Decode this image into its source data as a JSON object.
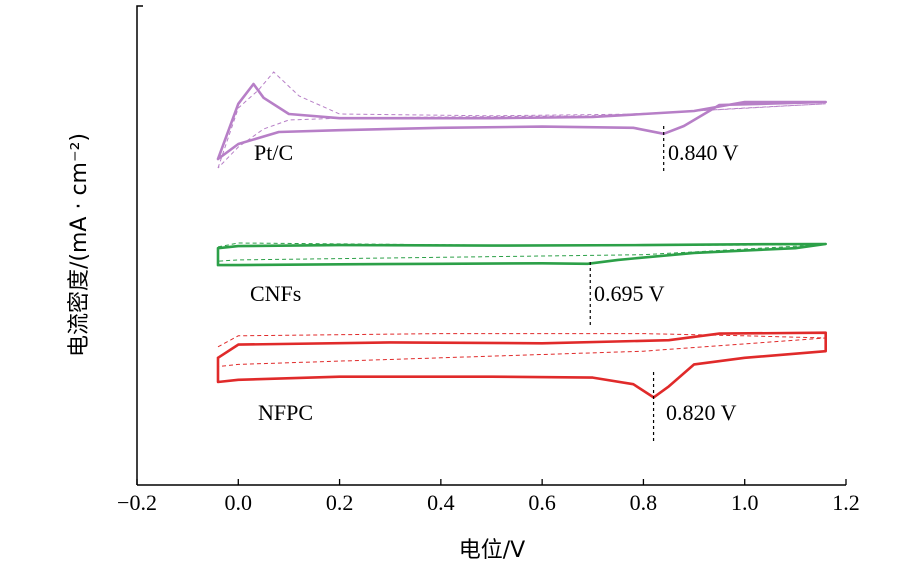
{
  "chart_data": {
    "type": "line",
    "title": "",
    "xlabel": "电位/V",
    "ylabel": "电流密度/(mA · cm⁻²)",
    "xlim": [
      -0.2,
      1.2
    ],
    "x_ticks": [
      -0.2,
      0.0,
      0.2,
      0.4,
      0.6,
      0.8,
      1.0,
      1.2
    ],
    "x_tick_labels": [
      "−0.2",
      "0.0",
      "0.2",
      "0.4",
      "0.6",
      "0.8",
      "1.0",
      "1.2"
    ],
    "y_ticks_shown": false,
    "grid": false,
    "curves": [
      {
        "label": "Pt/C",
        "color": "#b77fc7",
        "peak_potential": 0.84,
        "peak_label": "0.840 V",
        "solid_upper": [
          [
            -0.04,
            -0.9
          ],
          [
            0.0,
            0.02
          ],
          [
            0.03,
            0.35
          ],
          [
            0.05,
            0.12
          ],
          [
            0.1,
            -0.15
          ],
          [
            0.2,
            -0.22
          ],
          [
            0.5,
            -0.22
          ],
          [
            0.7,
            -0.2
          ],
          [
            0.9,
            -0.1
          ],
          [
            1.0,
            0.05
          ],
          [
            1.16,
            0.05
          ]
        ],
        "solid_lower": [
          [
            1.16,
            0.05
          ],
          [
            0.95,
            0.0
          ],
          [
            0.88,
            -0.35
          ],
          [
            0.84,
            -0.48
          ],
          [
            0.78,
            -0.38
          ],
          [
            0.6,
            -0.36
          ],
          [
            0.4,
            -0.38
          ],
          [
            0.2,
            -0.42
          ],
          [
            0.08,
            -0.45
          ],
          [
            0.0,
            -0.65
          ],
          [
            -0.04,
            -0.9
          ]
        ],
        "dash_upper": [
          [
            -0.04,
            -1.05
          ],
          [
            0.0,
            -0.05
          ],
          [
            0.04,
            0.25
          ],
          [
            0.07,
            0.55
          ],
          [
            0.12,
            0.15
          ],
          [
            0.2,
            -0.15
          ],
          [
            0.5,
            -0.18
          ],
          [
            0.8,
            -0.15
          ],
          [
            1.0,
            -0.05
          ],
          [
            1.16,
            0.02
          ]
        ],
        "dash_lower": [
          [
            1.16,
            0.02
          ],
          [
            0.9,
            -0.1
          ],
          [
            0.7,
            -0.18
          ],
          [
            0.4,
            -0.2
          ],
          [
            0.2,
            -0.22
          ],
          [
            0.1,
            -0.25
          ],
          [
            0.05,
            -0.4
          ],
          [
            0.0,
            -0.7
          ],
          [
            -0.04,
            -1.05
          ]
        ]
      },
      {
        "label": "CNFs",
        "color": "#2ca048",
        "peak_potential": 0.695,
        "peak_label": "0.695 V",
        "solid_upper": [
          [
            -0.04,
            0.3
          ],
          [
            0.0,
            0.38
          ],
          [
            0.2,
            0.42
          ],
          [
            0.5,
            0.4
          ],
          [
            0.8,
            0.42
          ],
          [
            1.0,
            0.45
          ],
          [
            1.16,
            0.46
          ]
        ],
        "solid_lower": [
          [
            1.16,
            0.46
          ],
          [
            1.1,
            0.3
          ],
          [
            0.9,
            0.12
          ],
          [
            0.75,
            -0.15
          ],
          [
            0.69,
            -0.3
          ],
          [
            0.6,
            -0.28
          ],
          [
            0.4,
            -0.3
          ],
          [
            0.2,
            -0.32
          ],
          [
            0.0,
            -0.35
          ],
          [
            -0.04,
            -0.35
          ],
          [
            -0.04,
            0.3
          ]
        ],
        "dash_upper": [
          [
            -0.04,
            0.35
          ],
          [
            0.0,
            0.5
          ],
          [
            0.3,
            0.45
          ],
          [
            0.6,
            0.4
          ],
          [
            1.0,
            0.42
          ],
          [
            1.16,
            0.44
          ]
        ],
        "dash_lower": [
          [
            1.16,
            0.44
          ],
          [
            0.8,
            0.05
          ],
          [
            0.4,
            -0.05
          ],
          [
            0.0,
            -0.15
          ],
          [
            -0.04,
            -0.2
          ]
        ]
      },
      {
        "label": "NFPC",
        "color": "#e02a2a",
        "peak_potential": 0.82,
        "peak_label": "0.820 V",
        "solid_upper": [
          [
            -0.04,
            0.05
          ],
          [
            0.0,
            0.35
          ],
          [
            0.3,
            0.4
          ],
          [
            0.6,
            0.38
          ],
          [
            0.85,
            0.45
          ],
          [
            0.95,
            0.6
          ],
          [
            1.16,
            0.62
          ],
          [
            1.16,
            0.2
          ]
        ],
        "solid_lower": [
          [
            1.16,
            0.2
          ],
          [
            1.0,
            0.05
          ],
          [
            0.9,
            -0.1
          ],
          [
            0.85,
            -0.6
          ],
          [
            0.82,
            -0.85
          ],
          [
            0.78,
            -0.55
          ],
          [
            0.7,
            -0.4
          ],
          [
            0.5,
            -0.38
          ],
          [
            0.2,
            -0.38
          ],
          [
            0.0,
            -0.45
          ],
          [
            -0.04,
            -0.5
          ],
          [
            -0.04,
            0.05
          ]
        ],
        "dash_upper": [
          [
            -0.04,
            0.3
          ],
          [
            0.0,
            0.55
          ],
          [
            0.4,
            0.6
          ],
          [
            0.8,
            0.6
          ],
          [
            1.0,
            0.55
          ],
          [
            1.16,
            0.5
          ]
        ],
        "dash_lower": [
          [
            1.16,
            0.5
          ],
          [
            0.8,
            0.2
          ],
          [
            0.4,
            0.05
          ],
          [
            0.0,
            -0.1
          ],
          [
            -0.04,
            -0.15
          ]
        ]
      }
    ]
  }
}
